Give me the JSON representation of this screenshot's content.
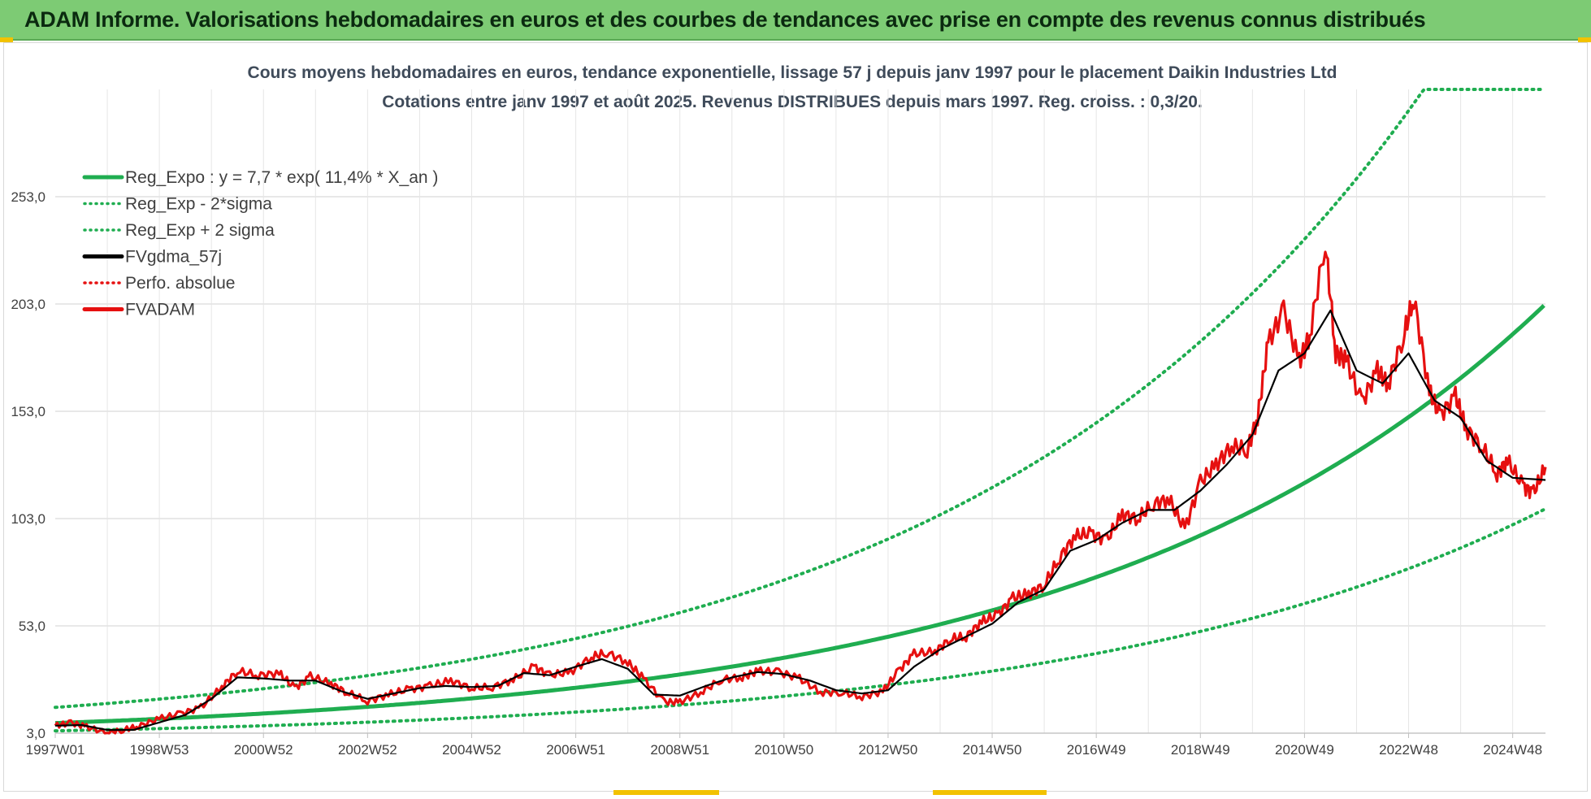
{
  "banner": {
    "title": "ADAM Informe. Valorisations hebdomadaires en euros et des courbes de tendances avec prise en compte des revenus connus distribués"
  },
  "colors": {
    "banner_bg": "#7dcb74",
    "accent_yellow": "#f2c200",
    "trend_green": "#1fad50",
    "ma_black": "#000000",
    "adam_red": "#e61010"
  },
  "chart_data": {
    "type": "line",
    "title_line1": "Cours moyens hebdomadaires en euros, tendance exponentielle, lissage 57 j depuis janv 1997 pour le placement Daikin Industries Ltd",
    "title_line2": "Cotations entre janv 1997 et août 2025.  Revenus DISTRIBUES depuis mars 1997. Reg. croiss. : 0,3/20.",
    "xlabel": "",
    "ylabel": "",
    "x_tick_labels": [
      "1997W01",
      "1998W53",
      "2000W52",
      "2002W52",
      "2004W52",
      "2006W51",
      "2008W51",
      "2010W50",
      "2012W50",
      "2014W50",
      "2016W49",
      "2018W49",
      "2020W49",
      "2022W48",
      "2024W48"
    ],
    "x_tick_years": [
      1997.0,
      1999.0,
      2001.0,
      2003.0,
      2005.0,
      2007.0,
      2009.0,
      2011.0,
      2013.0,
      2015.0,
      2017.0,
      2019.0,
      2021.0,
      2023.0,
      2025.0
    ],
    "x_range": [
      1997.0,
      2025.63
    ],
    "y_tick_labels": [
      "3,0",
      "53,0",
      "103,0",
      "153,0",
      "203,0",
      "253,0"
    ],
    "y_ticks": [
      3,
      53,
      103,
      153,
      203,
      253
    ],
    "ylim": [
      3,
      303
    ],
    "grid": true,
    "legend_position": "top-left",
    "legend": [
      {
        "label": "Reg_Expo : y = 7,7 * exp( 11,4% *  X_an )",
        "color": "#1fad50",
        "style": "solid"
      },
      {
        "label": "Reg_Exp - 2*sigma",
        "color": "#1fad50",
        "style": "dotted"
      },
      {
        "label": "Reg_Exp + 2 sigma",
        "color": "#1fad50",
        "style": "dotted"
      },
      {
        "label": "FVgdma_57j",
        "color": "#000000",
        "style": "solid"
      },
      {
        "label": "Perfo. absolue",
        "color": "#e61010",
        "style": "dotted"
      },
      {
        "label": "FVADAM",
        "color": "#e61010",
        "style": "solid"
      }
    ],
    "regression": {
      "a": 7.7,
      "b": 0.114,
      "sigma_factor": 2.0,
      "cap": 303
    },
    "fvadam": {
      "x": [
        1997.0,
        1997.3,
        1997.6,
        1998.0,
        1998.3,
        1998.6,
        1999.0,
        1999.4,
        1999.8,
        2000.2,
        2000.5,
        2000.9,
        2001.3,
        2001.6,
        2001.9,
        2002.3,
        2002.6,
        2003.0,
        2003.4,
        2003.8,
        2004.2,
        2004.6,
        2005.0,
        2005.4,
        2005.8,
        2006.2,
        2006.5,
        2006.9,
        2007.3,
        2007.6,
        2008.0,
        2008.3,
        2008.7,
        2009.0,
        2009.4,
        2009.8,
        2010.2,
        2010.5,
        2010.9,
        2011.3,
        2011.7,
        2012.1,
        2012.5,
        2012.9,
        2013.2,
        2013.5,
        2013.9,
        2014.2,
        2014.5,
        2014.8,
        2015.1,
        2015.4,
        2015.7,
        2016.0,
        2016.3,
        2016.6,
        2016.9,
        2017.2,
        2017.5,
        2017.8,
        2018.1,
        2018.4,
        2018.7,
        2019.0,
        2019.3,
        2019.6,
        2019.9,
        2020.1,
        2020.3,
        2020.6,
        2020.9,
        2021.1,
        2021.4,
        2021.6,
        2021.8,
        2022.1,
        2022.4,
        2022.6,
        2022.9,
        2023.1,
        2023.4,
        2023.6,
        2023.9,
        2024.1,
        2024.4,
        2024.7,
        2024.9,
        2025.2,
        2025.4,
        2025.63
      ],
      "y": [
        6.5,
        7.8,
        6.0,
        3.0,
        4.5,
        6.2,
        9.8,
        12.0,
        15.0,
        24.5,
        32.0,
        30.0,
        31.0,
        24.0,
        29.5,
        26.0,
        22.0,
        18.0,
        21.0,
        23.5,
        25.0,
        27.5,
        24.0,
        24.5,
        28.0,
        34.0,
        30.0,
        31.5,
        38.5,
        40.5,
        36.0,
        28.5,
        17.5,
        17.5,
        22.0,
        28.0,
        29.0,
        32.0,
        31.5,
        28.5,
        22.0,
        22.0,
        20.0,
        22.5,
        32.0,
        40.0,
        41.0,
        47.0,
        48.0,
        55.0,
        58.0,
        66.0,
        68.0,
        72.0,
        85.0,
        95.0,
        96.0,
        93.0,
        105.0,
        103.0,
        110.0,
        112.0,
        98.0,
        120.0,
        128.0,
        137.0,
        135.0,
        150.0,
        185.0,
        200.0,
        176.0,
        188.0,
        232.0,
        180.0,
        177.0,
        157.0,
        172.0,
        165.0,
        188.0,
        206.0,
        162.0,
        151.0,
        160.0,
        145.0,
        137.0,
        124.0,
        130.0,
        118.0,
        115.0,
        127.0
      ]
    },
    "fvgdma_57j": {
      "x": [
        1997.0,
        1997.5,
        1998.0,
        1998.5,
        1999.0,
        1999.5,
        2000.0,
        2000.5,
        2001.0,
        2001.5,
        2002.0,
        2002.5,
        2003.0,
        2003.5,
        2004.0,
        2004.5,
        2005.0,
        2005.5,
        2006.0,
        2006.5,
        2007.0,
        2007.5,
        2008.0,
        2008.5,
        2009.0,
        2009.5,
        2010.0,
        2010.5,
        2011.0,
        2011.5,
        2012.0,
        2012.5,
        2013.0,
        2013.5,
        2014.0,
        2014.5,
        2015.0,
        2015.5,
        2016.0,
        2016.5,
        2017.0,
        2017.5,
        2018.0,
        2018.5,
        2019.0,
        2019.5,
        2020.0,
        2020.5,
        2021.0,
        2021.5,
        2022.0,
        2022.5,
        2023.0,
        2023.5,
        2024.0,
        2024.5,
        2025.0,
        2025.63
      ],
      "y": [
        6.5,
        6.8,
        4.5,
        4.5,
        8.0,
        11.5,
        19.0,
        29.0,
        28.5,
        27.5,
        27.5,
        22.5,
        19.0,
        21.5,
        24.0,
        25.0,
        24.5,
        25.0,
        31.0,
        30.0,
        34.0,
        37.5,
        33.0,
        21.0,
        20.5,
        25.0,
        29.0,
        31.5,
        30.5,
        27.5,
        23.0,
        21.5,
        23.0,
        34.0,
        42.0,
        48.0,
        54.0,
        64.0,
        70.0,
        88.0,
        93.0,
        101.0,
        107.0,
        107.0,
        116.0,
        128.0,
        142.0,
        172.0,
        180.0,
        200.0,
        172.0,
        166.0,
        180.0,
        158.0,
        150.0,
        130.0,
        122.0,
        121.0
      ]
    }
  }
}
